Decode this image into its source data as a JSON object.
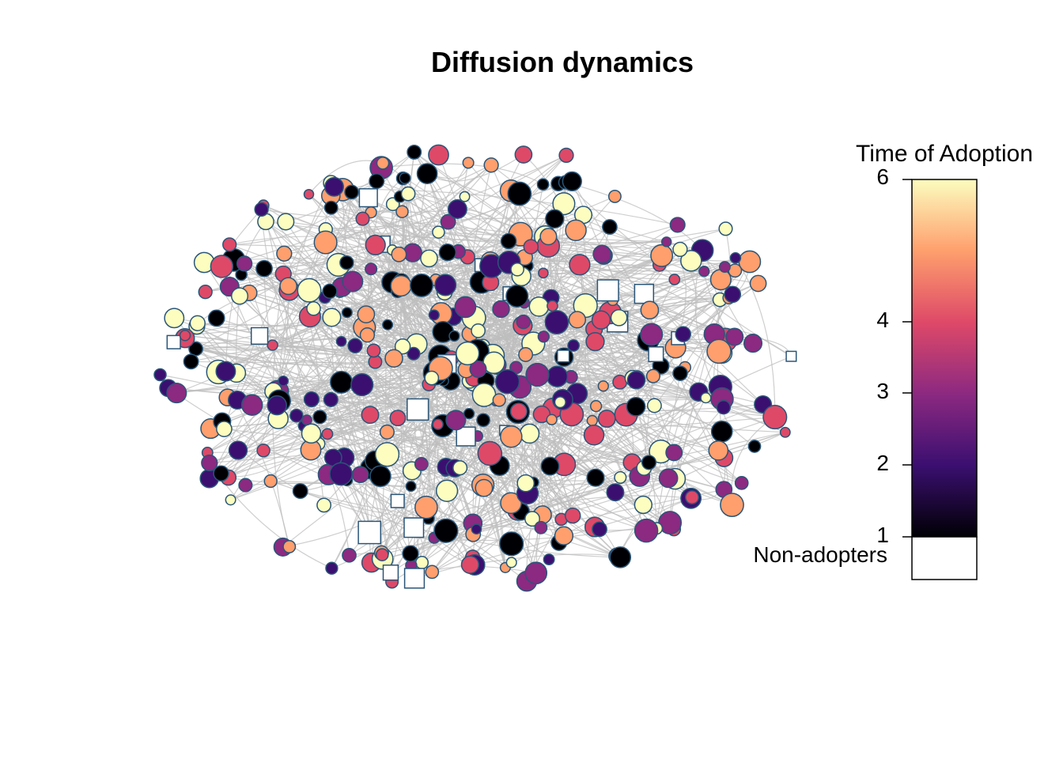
{
  "title": "Diffusion dynamics",
  "legend": {
    "title": "Time of Adoption",
    "ticks": [
      "6",
      "4",
      "3",
      "2",
      "1"
    ],
    "tick_values": [
      6,
      4,
      3,
      2,
      1
    ],
    "non_adopters_label": "Non-adopters",
    "colors": {
      "low": "#000004",
      "mid_low": "#3b0f70",
      "mid": "#8c2981",
      "mid_high": "#de4968",
      "high_mid": "#fe9f6d",
      "high": "#fcfdbf",
      "non_adopter": "#ffffff",
      "node_border": "#2a5578",
      "edge": "#bdbdbd"
    }
  }
}
